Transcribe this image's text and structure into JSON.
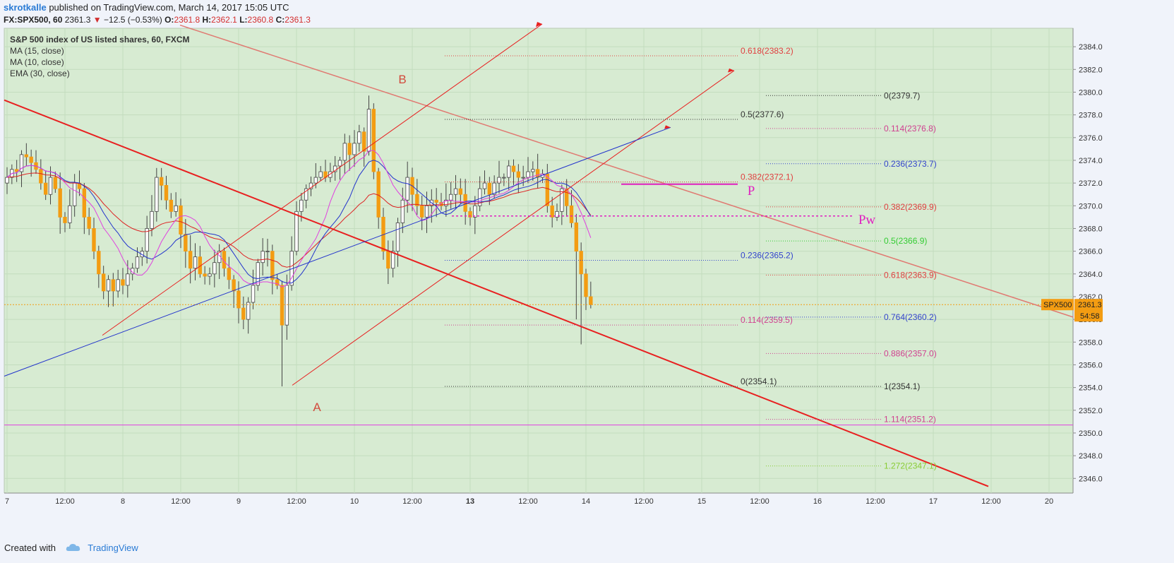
{
  "header": {
    "user": "skrotkalle",
    "published": "published on TradingView.com, March 14, 2017 15:05 UTC",
    "symbol": "FX:SPX500, 60",
    "last": "2361.3",
    "change": "−12.5 (−0.53%)",
    "o_label": "O:",
    "o_value": "2361.8",
    "h_label": "H:",
    "h_value": "2362.1",
    "l_label": "L:",
    "l_value": "2360.8",
    "c_label": "C:",
    "c_value": "2361.3"
  },
  "legend": {
    "title": "S&P 500 index of US listed shares, 60, FXCM",
    "items": [
      "MA (15, close)",
      "MA (10, close)",
      "EMA (30, close)"
    ]
  },
  "footer": {
    "created": "Created with",
    "brand": "TradingView"
  },
  "colors": {
    "bg_plot": "#d7ebd2",
    "candle_up": "#ffffff",
    "candle_down": "#f39c12",
    "ma15": "#2233cc",
    "ma10": "#e040e0",
    "ema30": "#dd2222",
    "trend_red": "#e82020",
    "trend_pink": "#e07a72",
    "fib_black": "#333333"
  },
  "chart_data": {
    "type": "candlestick",
    "ylim": [
      2344.5,
      2386
    ],
    "y_ticks": [
      2346,
      2348,
      2350,
      2352,
      2354,
      2356,
      2358,
      2360,
      2362,
      2364,
      2366,
      2368,
      2370,
      2372,
      2374,
      2376,
      2378,
      2380,
      2382,
      2384
    ],
    "x_ticks": [
      {
        "label": "7",
        "bold": false,
        "x": 0
      },
      {
        "label": "12:00",
        "bold": false,
        "x": 12
      },
      {
        "label": "8",
        "bold": false,
        "x": 24
      },
      {
        "label": "12:00",
        "bold": false,
        "x": 36
      },
      {
        "label": "9",
        "bold": false,
        "x": 48
      },
      {
        "label": "12:00",
        "bold": false,
        "x": 60
      },
      {
        "label": "10",
        "bold": false,
        "x": 72
      },
      {
        "label": "12:00",
        "bold": false,
        "x": 84
      },
      {
        "label": "13",
        "bold": true,
        "x": 96
      },
      {
        "label": "12:00",
        "bold": false,
        "x": 108
      },
      {
        "label": "14",
        "bold": false,
        "x": 120
      },
      {
        "label": "12:00",
        "bold": false,
        "x": 132
      },
      {
        "label": "15",
        "bold": false,
        "x": 144
      },
      {
        "label": "12:00",
        "bold": false,
        "x": 156
      },
      {
        "label": "16",
        "bold": false,
        "x": 168
      },
      {
        "label": "12:00",
        "bold": false,
        "x": 180
      },
      {
        "label": "17",
        "bold": false,
        "x": 192
      },
      {
        "label": "12:00",
        "bold": false,
        "x": 204
      },
      {
        "label": "20",
        "bold": false,
        "x": 216
      }
    ],
    "price_label": {
      "symbol": "SPX500",
      "value": "2361.3",
      "countdown": "54:58",
      "y": 2361.3
    },
    "closes": [
      2372.5,
      2373.2,
      2373,
      2374.5,
      2374.3,
      2373.8,
      2373.2,
      2372,
      2371,
      2372.5,
      2371.5,
      2369,
      2368.5,
      2370,
      2372,
      2371.5,
      2369,
      2368,
      2366,
      2364,
      2362.5,
      2363.5,
      2362.5,
      2363.5,
      2363,
      2364,
      2364.5,
      2365.5,
      2366,
      2368,
      2369.5,
      2372.5,
      2371.8,
      2370.5,
      2369.5,
      2370,
      2367.5,
      2366,
      2364.5,
      2365.5,
      2364,
      2363.8,
      2364,
      2365,
      2366,
      2364.5,
      2363.5,
      2362.5,
      2361,
      2360,
      2361.5,
      2363,
      2365,
      2366,
      2366,
      2363.5,
      2363,
      2359.5,
      2363,
      2366,
      2369.5,
      2370.5,
      2371.5,
      2372,
      2372.5,
      2373,
      2372.5,
      2373,
      2373.5,
      2374,
      2375.5,
      2374.5,
      2375.5,
      2376.5,
      2374.8,
      2378.5,
      2373,
      2369,
      2366,
      2364.5,
      2366,
      2368.5,
      2370.5,
      2372.5,
      2371,
      2370,
      2369,
      2370,
      2370.5,
      2370.3,
      2370,
      2370.5,
      2371,
      2371.5,
      2371,
      2369.5,
      2369,
      2370,
      2371.5,
      2372,
      2371,
      2372,
      2372.5,
      2372.5,
      2373.5,
      2373,
      2372.5,
      2372.5,
      2373,
      2373.2,
      2372.5,
      2372.8,
      2370,
      2369,
      2369.5,
      2371.5,
      2370,
      2368.5,
      2366,
      2364,
      2362,
      2361.3
    ]
  },
  "annotations": {
    "A": "A",
    "B": "B",
    "P": "P",
    "Pw": "Pw",
    "fib1": [
      "0.618(2383.2)",
      "0.5(2377.6)",
      "0.382(2372.1)",
      "0.236(2365.2)",
      "0.114(2359.5)",
      "0(2354.1)"
    ],
    "fib2": [
      "0(2379.7)",
      "0.114(2376.8)",
      "0.236(2373.7)",
      "0.382(2369.9)",
      "0.5(2366.9)",
      "0.618(2363.9)",
      "0.764(2360.2)",
      "0.886(2357.0)",
      "1(2354.1)",
      "1.114(2351.2)",
      "1.272(2347.1)"
    ]
  }
}
